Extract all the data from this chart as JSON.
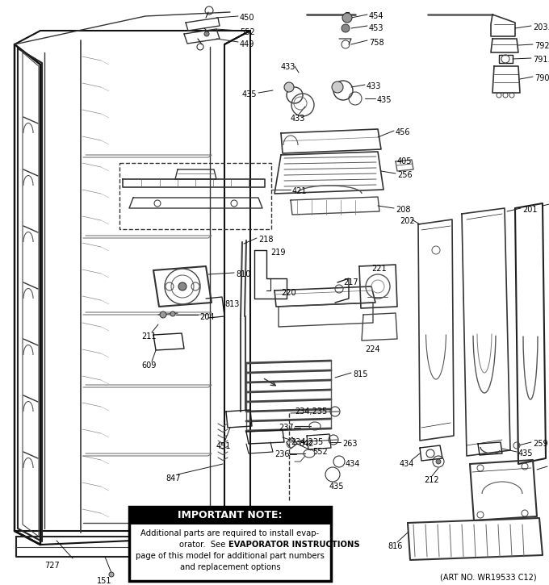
{
  "bg_color": "#ffffff",
  "art_no": "(ART NO. WR19533 C12)",
  "important_note": {
    "header": "IMPORTANT NOTE:",
    "line1": "Additional parts are required to install evap-",
    "line2_a": "orator.  See ",
    "line2_b": "EVAPORATOR INSTRUCTIONS",
    "line3": "page of this model for additional part numbers",
    "line4": "and replacement options"
  }
}
